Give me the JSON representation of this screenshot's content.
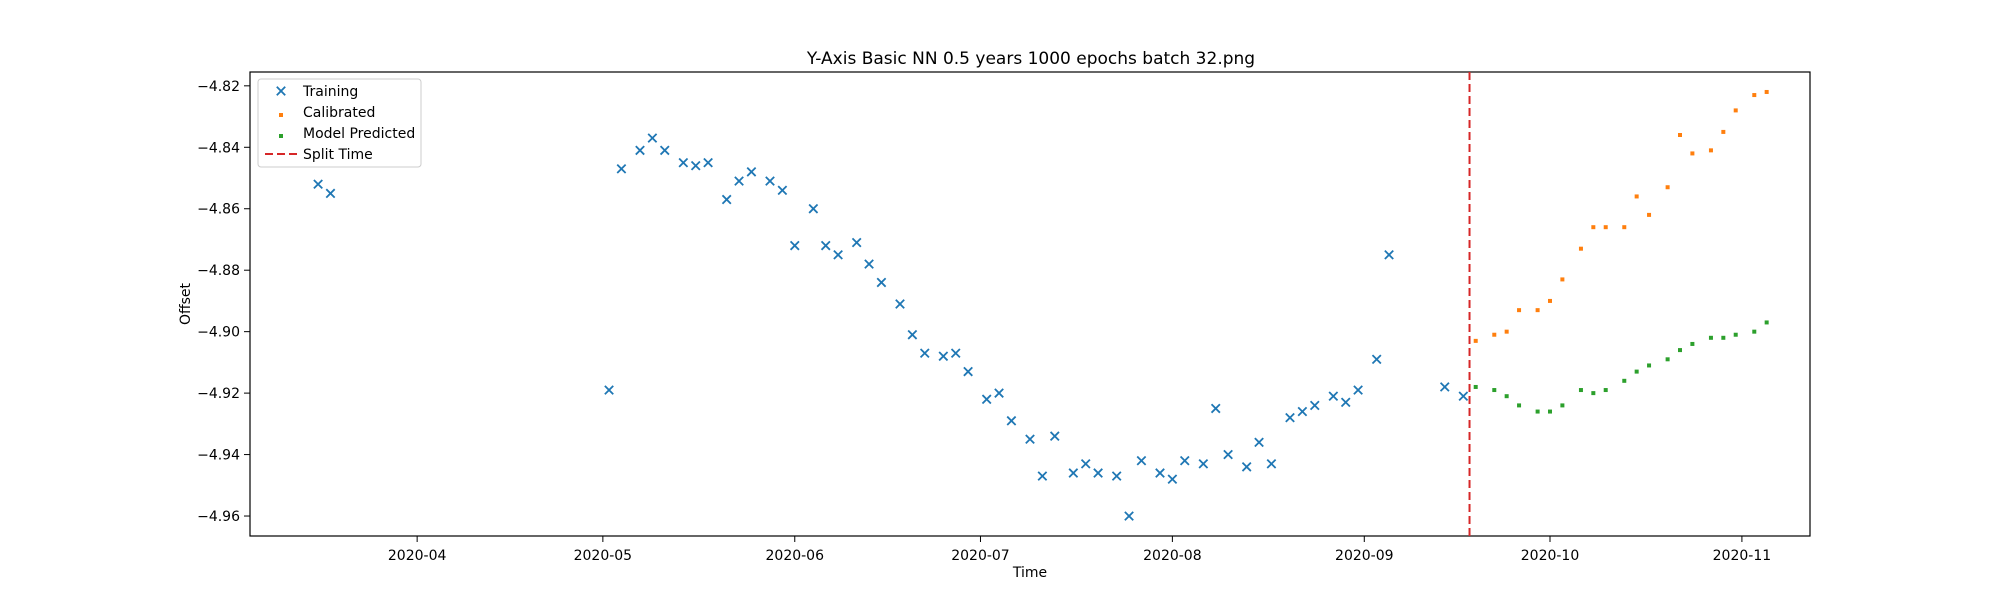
{
  "chart_data": {
    "type": "scatter",
    "title": "Y-Axis Basic NN 0.5 years 1000 epochs batch 32.png",
    "xlabel": "Time",
    "ylabel": "Offset",
    "x_axis_type": "date",
    "xlim": [
      "2020-03-05",
      "2020-11-12"
    ],
    "ylim": [
      -4.9665,
      -4.8155
    ],
    "x_ticks": [
      "2020-04-01",
      "2020-05-01",
      "2020-06-01",
      "2020-07-01",
      "2020-08-01",
      "2020-09-01",
      "2020-10-01",
      "2020-11-01"
    ],
    "x_tick_labels": [
      "2020-04",
      "2020-05",
      "2020-06",
      "2020-07",
      "2020-08",
      "2020-09",
      "2020-10",
      "2020-11"
    ],
    "y_ticks": [
      -4.96,
      -4.94,
      -4.92,
      -4.9,
      -4.88,
      -4.86,
      -4.84,
      -4.82
    ],
    "y_tick_labels": [
      "−4.96",
      "−4.94",
      "−4.92",
      "−4.90",
      "−4.88",
      "−4.86",
      "−4.84",
      "−4.82"
    ],
    "grid": false,
    "legend_position": "top-left",
    "series": [
      {
        "name": "Training",
        "marker": "x",
        "color": "#1f77b4",
        "points": [
          [
            "2020-03-16",
            -4.852
          ],
          [
            "2020-03-18",
            -4.855
          ],
          [
            "2020-05-02",
            -4.919
          ],
          [
            "2020-05-04",
            -4.847
          ],
          [
            "2020-05-07",
            -4.841
          ],
          [
            "2020-05-09",
            -4.837
          ],
          [
            "2020-05-11",
            -4.841
          ],
          [
            "2020-05-14",
            -4.845
          ],
          [
            "2020-05-16",
            -4.846
          ],
          [
            "2020-05-18",
            -4.845
          ],
          [
            "2020-05-21",
            -4.857
          ],
          [
            "2020-05-23",
            -4.851
          ],
          [
            "2020-05-25",
            -4.848
          ],
          [
            "2020-05-28",
            -4.851
          ],
          [
            "2020-05-30",
            -4.854
          ],
          [
            "2020-06-01",
            -4.872
          ],
          [
            "2020-06-04",
            -4.86
          ],
          [
            "2020-06-06",
            -4.872
          ],
          [
            "2020-06-08",
            -4.875
          ],
          [
            "2020-06-11",
            -4.871
          ],
          [
            "2020-06-13",
            -4.878
          ],
          [
            "2020-06-15",
            -4.884
          ],
          [
            "2020-06-18",
            -4.891
          ],
          [
            "2020-06-20",
            -4.901
          ],
          [
            "2020-06-22",
            -4.907
          ],
          [
            "2020-06-25",
            -4.908
          ],
          [
            "2020-06-27",
            -4.907
          ],
          [
            "2020-06-29",
            -4.913
          ],
          [
            "2020-07-02",
            -4.922
          ],
          [
            "2020-07-04",
            -4.92
          ],
          [
            "2020-07-06",
            -4.929
          ],
          [
            "2020-07-09",
            -4.935
          ],
          [
            "2020-07-11",
            -4.947
          ],
          [
            "2020-07-13",
            -4.934
          ],
          [
            "2020-07-16",
            -4.946
          ],
          [
            "2020-07-18",
            -4.943
          ],
          [
            "2020-07-20",
            -4.946
          ],
          [
            "2020-07-23",
            -4.947
          ],
          [
            "2020-07-25",
            -4.96
          ],
          [
            "2020-07-27",
            -4.942
          ],
          [
            "2020-07-30",
            -4.946
          ],
          [
            "2020-08-01",
            -4.948
          ],
          [
            "2020-08-03",
            -4.942
          ],
          [
            "2020-08-06",
            -4.943
          ],
          [
            "2020-08-08",
            -4.925
          ],
          [
            "2020-08-10",
            -4.94
          ],
          [
            "2020-08-13",
            -4.944
          ],
          [
            "2020-08-15",
            -4.936
          ],
          [
            "2020-08-17",
            -4.943
          ],
          [
            "2020-08-20",
            -4.928
          ],
          [
            "2020-08-22",
            -4.926
          ],
          [
            "2020-08-24",
            -4.924
          ],
          [
            "2020-08-27",
            -4.921
          ],
          [
            "2020-08-29",
            -4.923
          ],
          [
            "2020-08-31",
            -4.919
          ],
          [
            "2020-09-03",
            -4.909
          ],
          [
            "2020-09-05",
            -4.875
          ],
          [
            "2020-09-14",
            -4.918
          ],
          [
            "2020-09-17",
            -4.921
          ]
        ]
      },
      {
        "name": "Calibrated",
        "marker": "dot",
        "color": "#ff7f0e",
        "points": [
          [
            "2020-09-19",
            -4.903
          ],
          [
            "2020-09-22",
            -4.901
          ],
          [
            "2020-09-24",
            -4.9
          ],
          [
            "2020-09-26",
            -4.893
          ],
          [
            "2020-09-29",
            -4.893
          ],
          [
            "2020-10-01",
            -4.89
          ],
          [
            "2020-10-03",
            -4.883
          ],
          [
            "2020-10-06",
            -4.873
          ],
          [
            "2020-10-08",
            -4.866
          ],
          [
            "2020-10-10",
            -4.866
          ],
          [
            "2020-10-13",
            -4.866
          ],
          [
            "2020-10-15",
            -4.856
          ],
          [
            "2020-10-17",
            -4.862
          ],
          [
            "2020-10-20",
            -4.853
          ],
          [
            "2020-10-22",
            -4.836
          ],
          [
            "2020-10-24",
            -4.842
          ],
          [
            "2020-10-27",
            -4.841
          ],
          [
            "2020-10-29",
            -4.835
          ],
          [
            "2020-10-31",
            -4.828
          ],
          [
            "2020-11-03",
            -4.823
          ],
          [
            "2020-11-05",
            -4.822
          ]
        ]
      },
      {
        "name": "Model Predicted",
        "marker": "dot",
        "color": "#2ca02c",
        "points": [
          [
            "2020-09-19",
            -4.918
          ],
          [
            "2020-09-22",
            -4.919
          ],
          [
            "2020-09-24",
            -4.921
          ],
          [
            "2020-09-26",
            -4.924
          ],
          [
            "2020-09-29",
            -4.926
          ],
          [
            "2020-10-01",
            -4.926
          ],
          [
            "2020-10-03",
            -4.924
          ],
          [
            "2020-10-06",
            -4.919
          ],
          [
            "2020-10-08",
            -4.92
          ],
          [
            "2020-10-10",
            -4.919
          ],
          [
            "2020-10-13",
            -4.916
          ],
          [
            "2020-10-15",
            -4.913
          ],
          [
            "2020-10-17",
            -4.911
          ],
          [
            "2020-10-20",
            -4.909
          ],
          [
            "2020-10-22",
            -4.906
          ],
          [
            "2020-10-24",
            -4.904
          ],
          [
            "2020-10-27",
            -4.902
          ],
          [
            "2020-10-29",
            -4.902
          ],
          [
            "2020-10-31",
            -4.901
          ],
          [
            "2020-11-03",
            -4.9
          ],
          [
            "2020-11-05",
            -4.897
          ]
        ]
      },
      {
        "name": "Split Time",
        "marker": "vline",
        "color": "#d62728",
        "x": "2020-09-18"
      }
    ]
  }
}
